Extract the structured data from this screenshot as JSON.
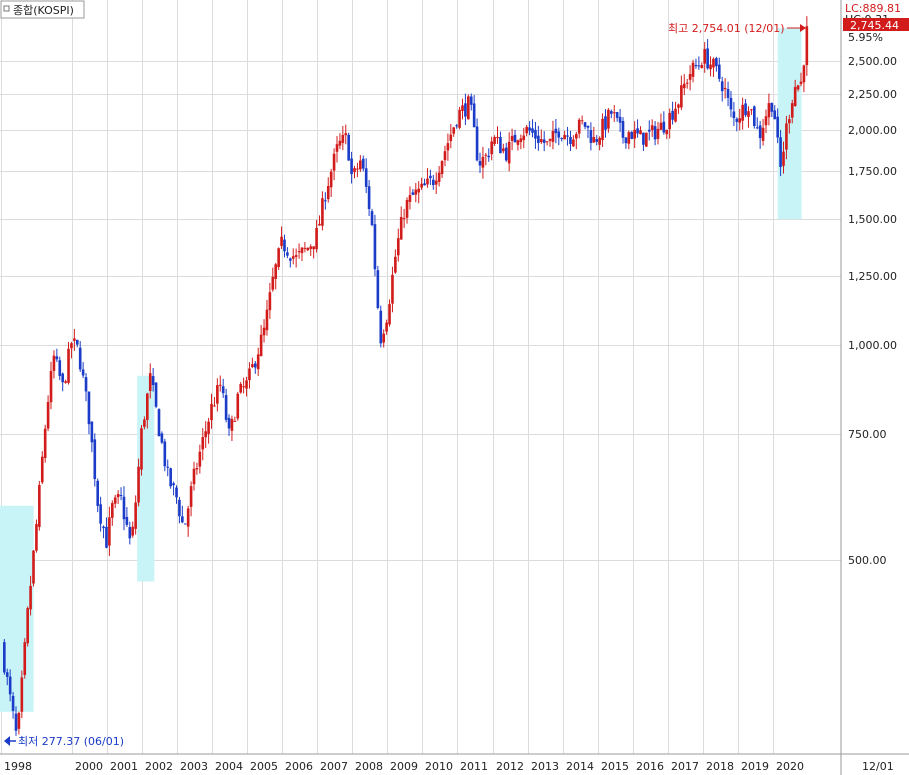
{
  "window": {
    "title": "종합(KOSPI)"
  },
  "right_panel": {
    "lc_label": "LC:889.81",
    "hc_label": "HC:9.31",
    "current_value": "2,745.44",
    "change_pct": "5.95%",
    "bottom_label": "12/01"
  },
  "annotations": {
    "max_label": "최고 2,754.01 (12/01)",
    "min_label": "최저 277.37 (06/01)"
  },
  "colors": {
    "up": "#d21c1c",
    "down": "#1a3cc8",
    "highlight": "#c8f4f8",
    "grid": "#dcdcdc"
  },
  "chart_data": {
    "type": "candlestick",
    "scale": "log",
    "ylim": [
      275,
      2780
    ],
    "y_ticks": [
      500,
      750,
      1000,
      1250,
      1500,
      1750,
      2000,
      2250,
      2500
    ],
    "y_tick_labels": [
      "500.00",
      "750.00",
      "1,000.00",
      "1,250.00",
      "1,500.00",
      "1,750.00",
      "2,000.00",
      "2,250.00",
      "2,500.00"
    ],
    "x_labels": [
      "1998",
      "2000",
      "2001",
      "2002",
      "2003",
      "2004",
      "2005",
      "2006",
      "2007",
      "2008",
      "2009",
      "2010",
      "2011",
      "2012",
      "2013",
      "2014",
      "2015",
      "2016",
      "2017",
      "2018",
      "2019",
      "2020"
    ],
    "x_label_years": [
      1998,
      2000,
      2001,
      2002,
      2003,
      2004,
      2005,
      2006,
      2007,
      2008,
      2009,
      2010,
      2011,
      2012,
      2013,
      2014,
      2015,
      2016,
      2017,
      2018,
      2019,
      2020
    ],
    "price_path": [
      [
        1998.0,
        380
      ],
      [
        1998.2,
        330
      ],
      [
        1998.45,
        278
      ],
      [
        1998.75,
        420
      ],
      [
        1999.0,
        560
      ],
      [
        1999.3,
        820
      ],
      [
        1999.5,
        960
      ],
      [
        1999.75,
        870
      ],
      [
        2000.0,
        1010
      ],
      [
        2000.2,
        980
      ],
      [
        2000.5,
        790
      ],
      [
        2000.75,
        600
      ],
      [
        2001.0,
        530
      ],
      [
        2001.15,
        590
      ],
      [
        2001.4,
        610
      ],
      [
        2001.7,
        520
      ],
      [
        2001.85,
        620
      ],
      [
        2002.0,
        760
      ],
      [
        2002.25,
        900
      ],
      [
        2002.5,
        760
      ],
      [
        2002.75,
        650
      ],
      [
        2003.0,
        610
      ],
      [
        2003.2,
        550
      ],
      [
        2003.45,
        640
      ],
      [
        2003.7,
        720
      ],
      [
        2004.0,
        820
      ],
      [
        2004.25,
        880
      ],
      [
        2004.5,
        740
      ],
      [
        2004.75,
        850
      ],
      [
        2005.0,
        880
      ],
      [
        2005.25,
        960
      ],
      [
        2005.5,
        1050
      ],
      [
        2005.75,
        1240
      ],
      [
        2006.0,
        1390
      ],
      [
        2006.4,
        1320
      ],
      [
        2006.75,
        1370
      ],
      [
        2007.0,
        1430
      ],
      [
        2007.25,
        1650
      ],
      [
        2007.6,
        1900
      ],
      [
        2007.85,
        1950
      ],
      [
        2008.0,
        1700
      ],
      [
        2008.25,
        1820
      ],
      [
        2008.55,
        1500
      ],
      [
        2008.8,
        1020
      ],
      [
        2009.0,
        1110
      ],
      [
        2009.25,
        1350
      ],
      [
        2009.5,
        1560
      ],
      [
        2009.75,
        1620
      ],
      [
        2010.0,
        1650
      ],
      [
        2010.3,
        1700
      ],
      [
        2010.6,
        1850
      ],
      [
        2010.85,
        2000
      ],
      [
        2011.0,
        2100
      ],
      [
        2011.35,
        2180
      ],
      [
        2011.6,
        1800
      ],
      [
        2011.85,
        1840
      ],
      [
        2012.0,
        1950
      ],
      [
        2012.4,
        1860
      ],
      [
        2012.75,
        1990
      ],
      [
        2013.0,
        2000
      ],
      [
        2013.3,
        1950
      ],
      [
        2013.6,
        1900
      ],
      [
        2013.9,
        2010
      ],
      [
        2014.2,
        1960
      ],
      [
        2014.6,
        2050
      ],
      [
        2014.9,
        1930
      ],
      [
        2015.2,
        2040
      ],
      [
        2015.4,
        2120
      ],
      [
        2015.7,
        1960
      ],
      [
        2015.9,
        1990
      ],
      [
        2016.2,
        1950
      ],
      [
        2016.5,
        1970
      ],
      [
        2016.8,
        2020
      ],
      [
        2017.0,
        2070
      ],
      [
        2017.3,
        2200
      ],
      [
        2017.6,
        2400
      ],
      [
        2017.9,
        2480
      ],
      [
        2018.0,
        2550
      ],
      [
        2018.3,
        2450
      ],
      [
        2018.6,
        2300
      ],
      [
        2018.85,
        2060
      ],
      [
        2019.0,
        2100
      ],
      [
        2019.3,
        2190
      ],
      [
        2019.6,
        1960
      ],
      [
        2019.85,
        2150
      ],
      [
        2020.0,
        2200
      ],
      [
        2020.2,
        1750
      ],
      [
        2020.4,
        2050
      ],
      [
        2020.6,
        2300
      ],
      [
        2020.8,
        2330
      ],
      [
        2020.95,
        2740
      ]
    ],
    "highlights": [
      {
        "x0": 1997.96,
        "x1": 1998.92,
        "y0": 306,
        "y1": 595
      },
      {
        "x0": 2001.87,
        "x1": 2002.36,
        "y0": 466,
        "y1": 905
      },
      {
        "x0": 2020.13,
        "x1": 2020.81,
        "y0": 1500,
        "y1": 2780
      }
    ],
    "max_point": {
      "label": "최고",
      "value": 2754.01,
      "date": "12/01"
    },
    "min_point": {
      "label": "최저",
      "value": 277.37,
      "date": "06/01"
    }
  }
}
